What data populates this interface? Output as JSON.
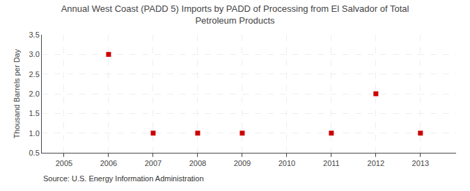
{
  "chart_data": {
    "type": "scatter",
    "title": "Annual West Coast (PADD 5) Imports by PADD of Processing from El Salvador of Total\nPetroleum Products",
    "ylabel": "Thousand Barrels per Day",
    "annotations": [
      "Source: U.S. Energy Information Administration"
    ],
    "x": [
      2006,
      2007,
      2008,
      2009,
      2011,
      2012,
      2013
    ],
    "values": [
      3.0,
      1.0,
      1.0,
      1.0,
      1.0,
      2.0,
      1.0
    ],
    "xlim": [
      2004.5,
      2013.8
    ],
    "ylim": [
      0.5,
      3.5
    ],
    "xticks": [
      2005,
      2006,
      2007,
      2008,
      2009,
      2010,
      2011,
      2012,
      2013
    ],
    "yticks": [
      0.5,
      {
        "value": 1.0,
        "label": "1.0"
      },
      1.5,
      {
        "value": 2.0,
        "label": "2.0"
      },
      2.5,
      {
        "value": 3.0,
        "label": "3.0"
      },
      3.5
    ],
    "color": "#cc0000",
    "marker": "square",
    "grid": true
  }
}
